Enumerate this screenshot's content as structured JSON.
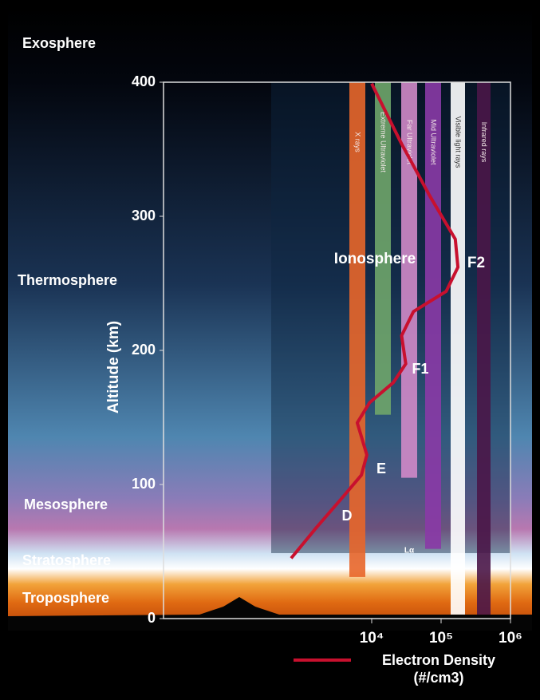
{
  "chart_data": {
    "type": "line",
    "ylabel": "Altitude (km)",
    "xlog": true,
    "xlim": [
      10,
      1000000
    ],
    "xticks": [
      {
        "value": 10000,
        "label": "10⁴"
      },
      {
        "value": 100000,
        "label": "10⁵"
      },
      {
        "value": 1000000,
        "label": "10⁶"
      }
    ],
    "ylim": [
      0,
      400
    ],
    "yticks": [
      0,
      100,
      200,
      300,
      400
    ],
    "series": [
      {
        "name": "Electron Density (#/cm3)",
        "color": "#c8102e",
        "x": [
          690,
          1600,
          3600,
          7100,
          8500,
          6200,
          9300,
          20500,
          31000,
          27000,
          40000,
          118000,
          175000,
          160000,
          69000,
          27000,
          10000
        ],
        "values": [
          45,
          68,
          89,
          107,
          122,
          146,
          161,
          176,
          190,
          211,
          229,
          244,
          262,
          283,
          315,
          354,
          399
        ]
      }
    ],
    "bands": [
      {
        "label": "X rays",
        "color": "#e8662a",
        "bottom": 31
      },
      {
        "label": "Extreme Ultraviolet",
        "color": "#6fa56a",
        "bottom": 152
      },
      {
        "label": "Far Ultraviolet",
        "color": "#d08ac8",
        "bottom": 105
      },
      {
        "label": "Mid Ultraviolet",
        "color": "#8a3aa6",
        "bottom": 52
      },
      {
        "label": "Visible light rays",
        "color": "#ffffff",
        "bottom": 3
      },
      {
        "label": "Infrared rays",
        "color": "#4a1648",
        "bottom": 3
      }
    ],
    "layers": [
      "Exosphere",
      "Thermosphere",
      "Mesosphere",
      "Stratosphere",
      "Troposphere"
    ],
    "annotations": [
      "Ionosphere",
      "F2",
      "F1",
      "E",
      "D",
      "Lα"
    ]
  }
}
